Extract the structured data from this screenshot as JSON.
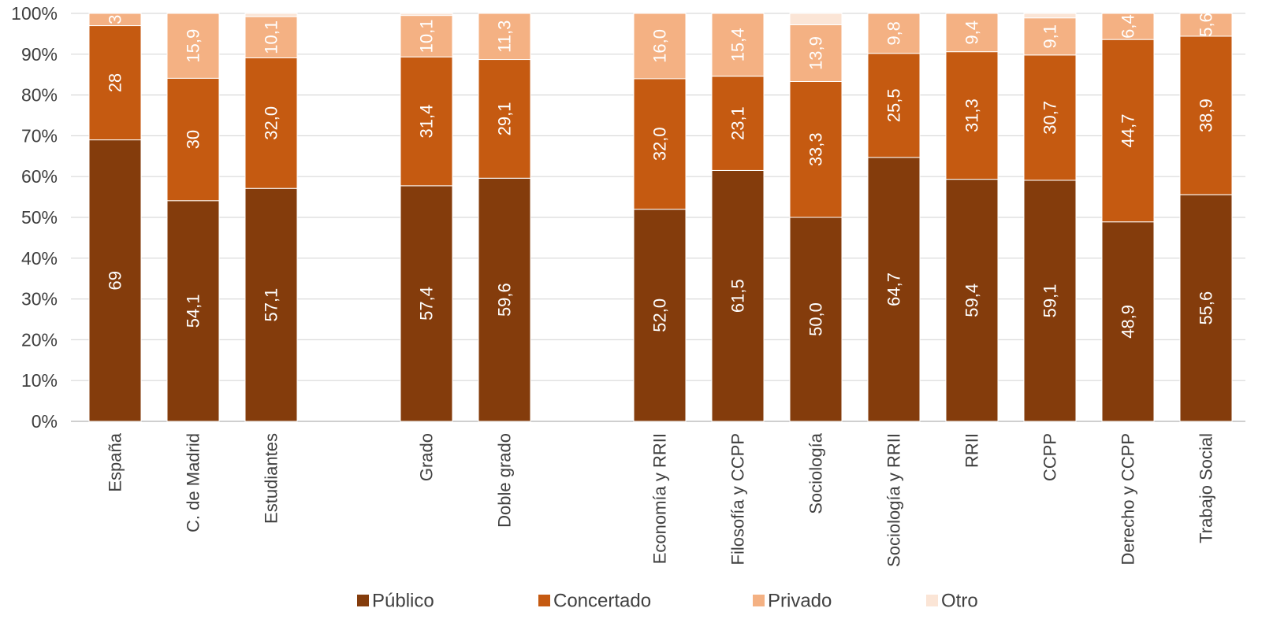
{
  "chart_data": {
    "type": "bar",
    "stacked": "percent",
    "orientation": "vertical",
    "categories": [
      "España",
      "C. de Madrid",
      "Estudiantes",
      "Grado",
      "Doble grado",
      "Economía y RRII",
      "Filosofía y CCPP",
      "Sociología",
      "Sociología y RRII",
      "RRII",
      "CCPP",
      "Derecho y CCPP",
      "Trabajo Social"
    ],
    "category_groups": [
      [
        0,
        1,
        2
      ],
      [
        3,
        4
      ],
      [
        5,
        6,
        7,
        8,
        9,
        10,
        11,
        12
      ]
    ],
    "series": [
      {
        "name": "Público",
        "color": "#843C0C",
        "values": [
          69,
          54.1,
          57.1,
          57.4,
          59.6,
          52.0,
          61.5,
          50.0,
          64.7,
          59.4,
          59.1,
          48.9,
          55.6
        ],
        "labels": [
          "69",
          "54,1",
          "57,1",
          "57,4",
          "59,6",
          "52,0",
          "61,5",
          "50,0",
          "64,7",
          "59,4",
          "59,1",
          "48,9",
          "55,6"
        ]
      },
      {
        "name": "Concertado",
        "color": "#C55A11",
        "values": [
          28,
          30,
          32.0,
          31.4,
          29.1,
          32.0,
          23.1,
          33.3,
          25.5,
          31.3,
          30.7,
          44.7,
          38.9
        ],
        "labels": [
          "28",
          "30",
          "32,0",
          "31,4",
          "29,1",
          "32,0",
          "23,1",
          "33,3",
          "25,5",
          "31,3",
          "30,7",
          "44,7",
          "38,9"
        ]
      },
      {
        "name": "Privado",
        "color": "#F4B183",
        "values": [
          3,
          15.9,
          10.1,
          10.1,
          11.3,
          16.0,
          15.4,
          13.9,
          9.8,
          9.4,
          9.1,
          6.4,
          5.6
        ],
        "labels": [
          "3",
          "15,9",
          "10,1",
          "10,1",
          "11,3",
          "16,0",
          "15,4",
          "13,9",
          "9,8",
          "9,4",
          "9,1",
          "6,4",
          "5,6"
        ]
      },
      {
        "name": "Otro",
        "color": "#FBE5D6",
        "values": [
          0,
          0,
          0.8,
          0.5,
          0,
          0,
          0,
          2.8,
          0,
          0,
          1.1,
          0,
          0
        ],
        "labels": [
          "",
          "",
          "",
          "",
          "",
          "",
          "",
          "",
          "",
          "",
          "",
          "",
          ""
        ]
      }
    ],
    "yticks": [
      "0%",
      "10%",
      "20%",
      "30%",
      "40%",
      "50%",
      "60%",
      "70%",
      "80%",
      "90%",
      "100%"
    ],
    "ylim": [
      0,
      100
    ],
    "grid": true,
    "legend_position": "bottom",
    "title": "",
    "xlabel": "",
    "ylabel": ""
  }
}
